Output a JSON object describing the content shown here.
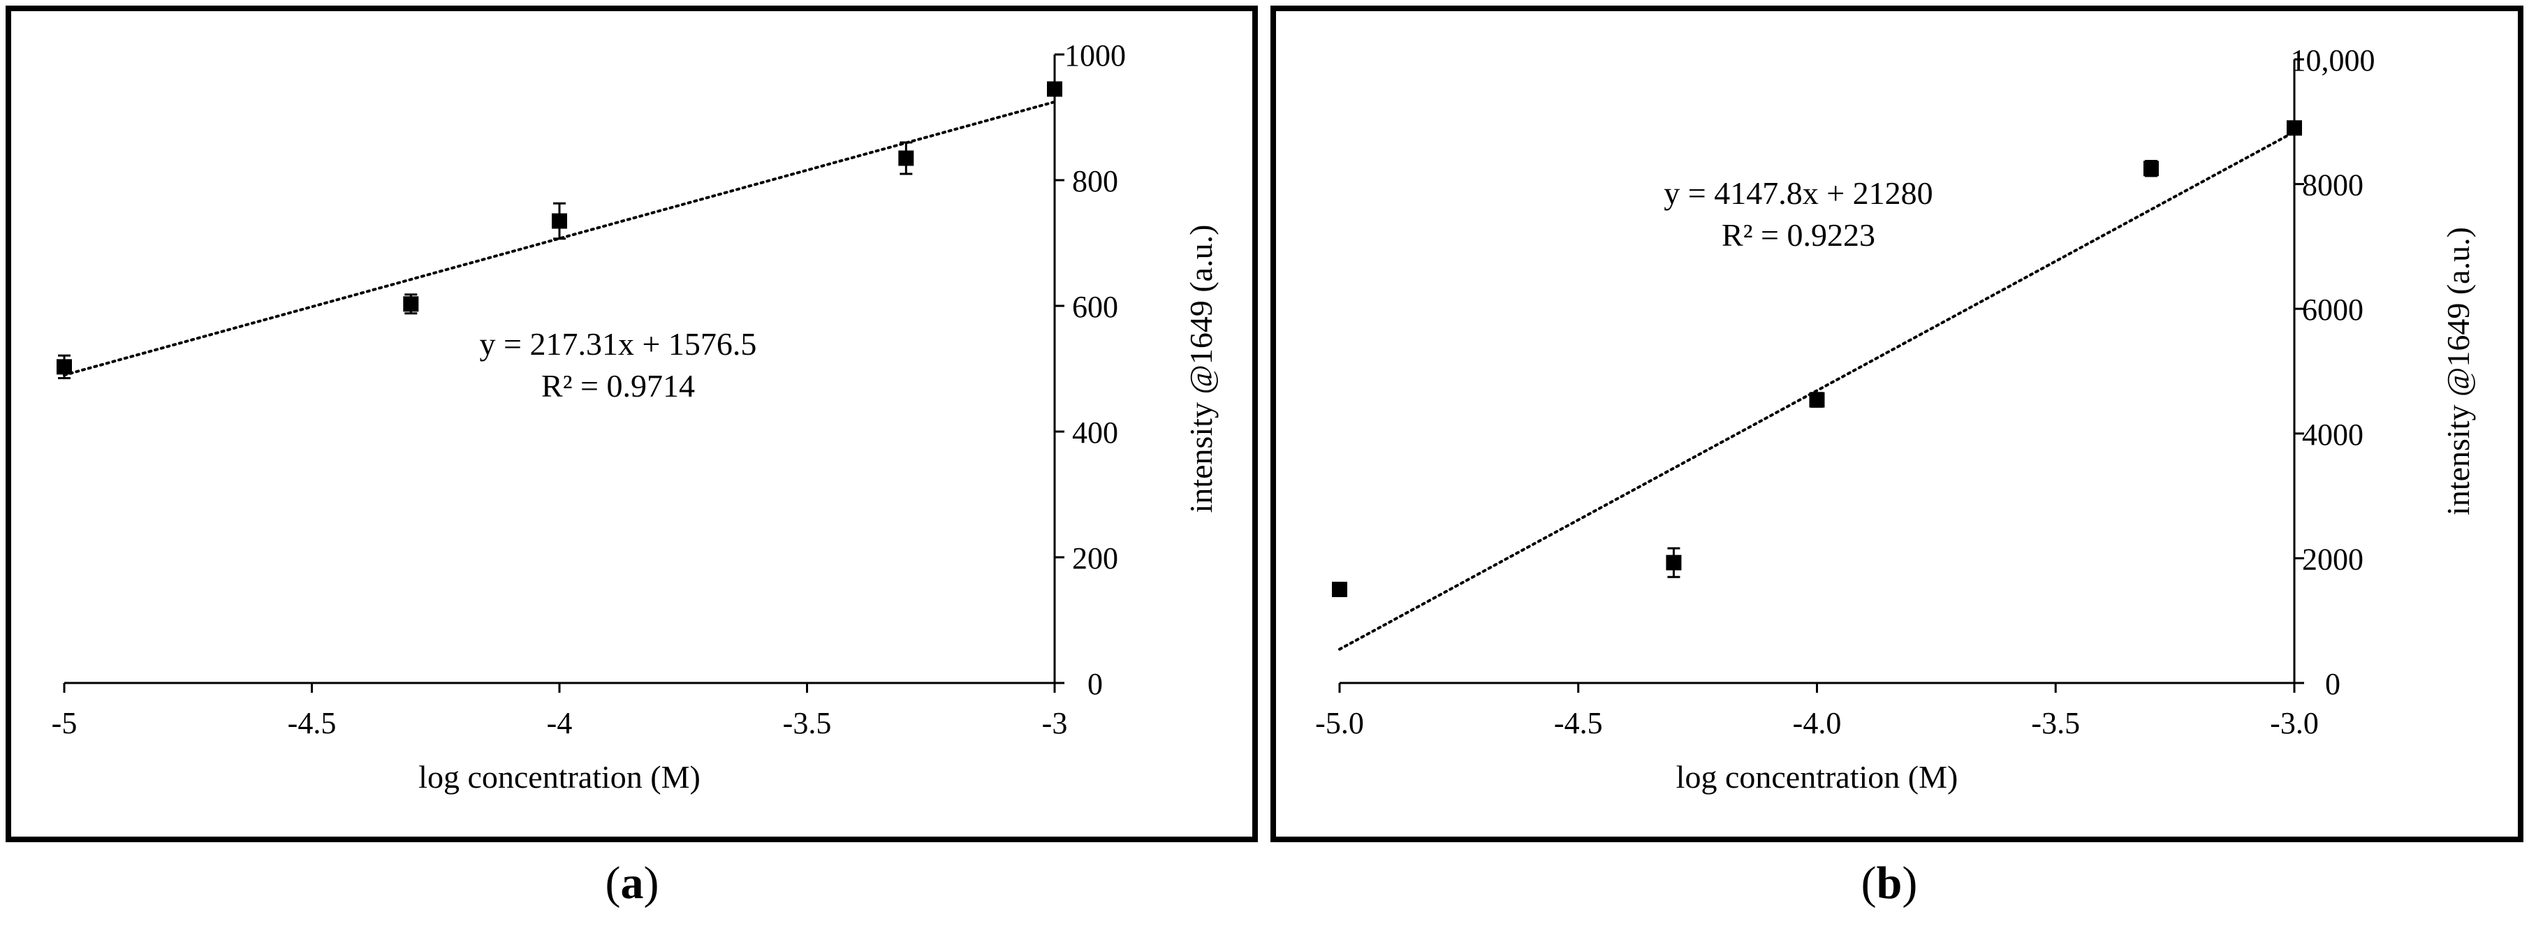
{
  "panels": [
    {
      "label": "a",
      "equation": "y = 217.31x + 1576.5",
      "r_squared": "R² = 0.9714"
    },
    {
      "label": "b",
      "equation": "y = 4147.8x + 21280",
      "r_squared": "R² = 0.9223"
    }
  ],
  "chart_data": [
    {
      "type": "scatter",
      "xlabel": "log concentration (M)",
      "ylabel": "intensity @1649 (a.u.)",
      "xlim": [
        -5,
        -3
      ],
      "ylim": [
        0,
        1000
      ],
      "x_ticks": [
        -5,
        -4.5,
        -4,
        -3.5,
        -3
      ],
      "x_tick_labels": [
        "-5",
        "-4.5",
        "-4",
        "-3.5",
        "-3"
      ],
      "y_ticks": [
        0,
        200,
        400,
        600,
        800,
        1000
      ],
      "y_tick_labels": [
        "0",
        "200",
        "400",
        "600",
        "800",
        "1000"
      ],
      "y_axis_side": "right",
      "grid": false,
      "series": [
        {
          "x": [
            -5,
            -4.3,
            -4,
            -3.3,
            -3
          ],
          "y": [
            503,
            603,
            735,
            835,
            945
          ],
          "error": [
            18,
            15,
            28,
            25,
            10
          ]
        }
      ],
      "trendline": {
        "style": "dotted",
        "slope": 217.31,
        "intercept": 1576.5,
        "equation": "y = 217.31x + 1576.5",
        "r_squared": "R² = 0.9714"
      }
    },
    {
      "type": "scatter",
      "xlabel": "log concentration (M)",
      "ylabel": "intensity @1649 (a.u.)",
      "xlim": [
        -5,
        -3
      ],
      "ylim": [
        0,
        10000
      ],
      "x_ticks": [
        -5,
        -4.5,
        -4,
        -3.5,
        -3
      ],
      "x_tick_labels": [
        "-5.0",
        "-4.5",
        "-4.0",
        "-3.5",
        "-3.0"
      ],
      "y_ticks": [
        0,
        2000,
        4000,
        6000,
        8000,
        10000
      ],
      "y_tick_labels": [
        "0",
        "2000",
        "4000",
        "6000",
        "8000",
        "10,000"
      ],
      "y_axis_side": "right",
      "grid": false,
      "series": [
        {
          "x": [
            -5,
            -4.3,
            -4,
            -3.3,
            -3
          ],
          "y": [
            1500,
            1930,
            4540,
            8250,
            8900
          ],
          "error": [
            100,
            230,
            110,
            120,
            80
          ]
        }
      ],
      "trendline": {
        "style": "dotted",
        "slope": 4147.8,
        "intercept": 21280,
        "equation": "y = 4147.8x + 21280",
        "r_squared": "R² = 0.9223"
      }
    }
  ]
}
